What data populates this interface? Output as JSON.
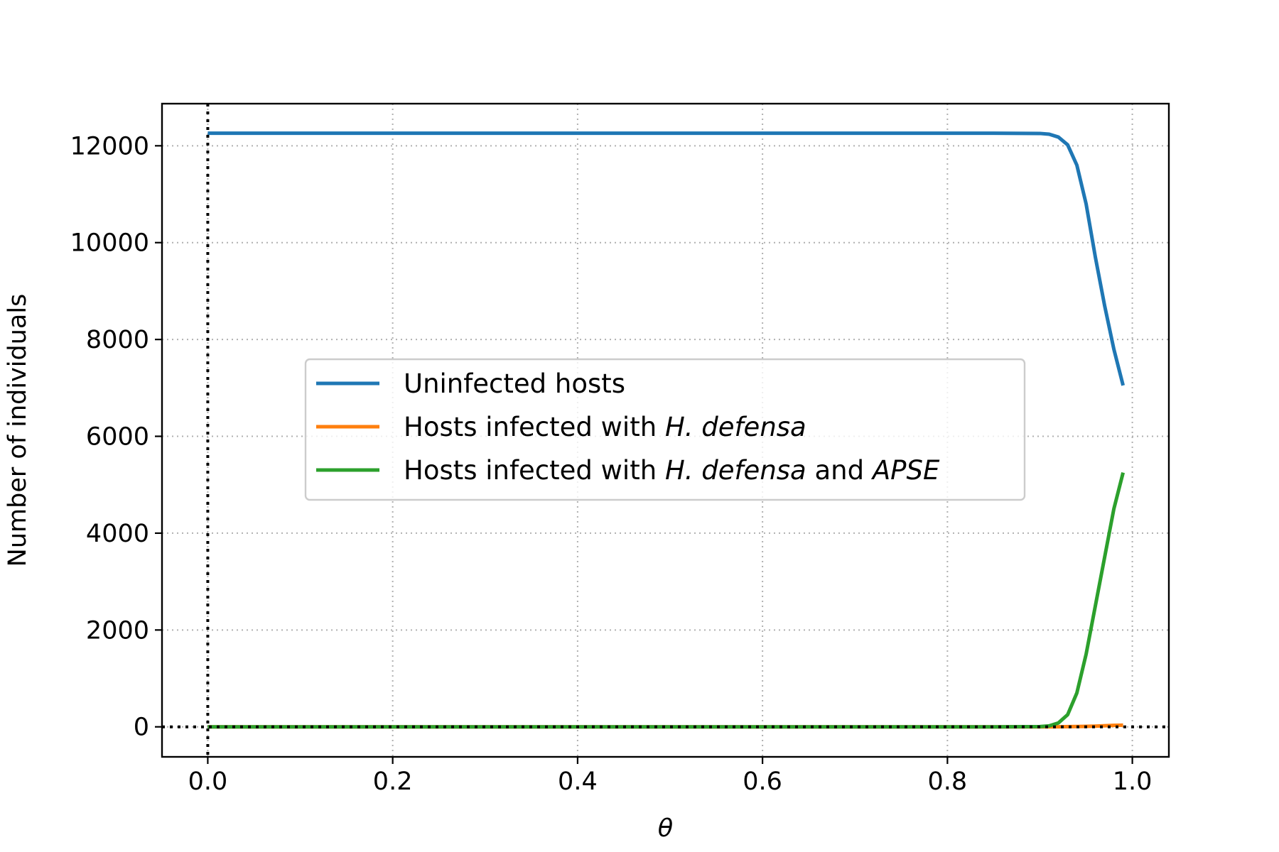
{
  "chart_data": {
    "type": "line",
    "title": "",
    "xlabel": "θ",
    "ylabel": "Number of individuals",
    "xlim": [
      -0.0495,
      1.0395
    ],
    "ylim": [
      -620,
      12870
    ],
    "x_ticks": [
      0.0,
      0.2,
      0.4,
      0.6,
      0.8,
      1.0
    ],
    "x_tick_labels": [
      "0.0",
      "0.2",
      "0.4",
      "0.6",
      "0.8",
      "1.0"
    ],
    "y_ticks": [
      0,
      2000,
      4000,
      6000,
      8000,
      10000,
      12000
    ],
    "y_tick_labels": [
      "0",
      "2000",
      "4000",
      "6000",
      "8000",
      "10000",
      "12000"
    ],
    "grid": true,
    "legend_position": "center",
    "reference_lines": [
      {
        "orientation": "vertical",
        "value": 0,
        "style": "dotted",
        "color": "#000000"
      },
      {
        "orientation": "horizontal",
        "value": 0,
        "style": "dotted",
        "color": "#000000"
      }
    ],
    "series": [
      {
        "name": "Uninfected hosts",
        "color": "#1f77b4",
        "x": [
          0.0,
          0.1,
          0.2,
          0.3,
          0.4,
          0.5,
          0.6,
          0.7,
          0.8,
          0.85,
          0.9,
          0.91,
          0.92,
          0.93,
          0.94,
          0.95,
          0.96,
          0.97,
          0.98,
          0.99
        ],
        "y": [
          12260,
          12260,
          12260,
          12260,
          12260,
          12260,
          12260,
          12260,
          12260,
          12260,
          12255,
          12240,
          12180,
          12020,
          11600,
          10800,
          9700,
          8700,
          7800,
          7050
        ]
      },
      {
        "name": "Hosts infected with H. defensa",
        "color": "#ff7f0e",
        "x": [
          0.0,
          0.1,
          0.2,
          0.3,
          0.4,
          0.5,
          0.6,
          0.7,
          0.8,
          0.9,
          0.92,
          0.94,
          0.96,
          0.98,
          0.99
        ],
        "y": [
          0,
          0,
          0,
          0,
          0,
          0,
          0,
          0,
          0,
          0,
          2,
          6,
          15,
          30,
          35
        ]
      },
      {
        "name": "Hosts infected with H. defensa and APSE",
        "color": "#2ca02c",
        "x": [
          0.0,
          0.1,
          0.2,
          0.3,
          0.4,
          0.5,
          0.6,
          0.7,
          0.8,
          0.85,
          0.9,
          0.91,
          0.92,
          0.93,
          0.94,
          0.95,
          0.96,
          0.97,
          0.98,
          0.99
        ],
        "y": [
          0,
          0,
          0,
          0,
          0,
          0,
          0,
          0,
          0,
          0,
          5,
          20,
          80,
          250,
          700,
          1500,
          2500,
          3500,
          4500,
          5250
        ]
      }
    ]
  },
  "legend": {
    "items": [
      {
        "segments": [
          {
            "text": "Uninfected hosts",
            "italic": false
          }
        ]
      },
      {
        "segments": [
          {
            "text": "Hosts infected with ",
            "italic": false
          },
          {
            "text": "H. defensa",
            "italic": true
          }
        ]
      },
      {
        "segments": [
          {
            "text": "Hosts infected with ",
            "italic": false
          },
          {
            "text": "H. defensa",
            "italic": true
          },
          {
            "text": " and ",
            "italic": false
          },
          {
            "text": "APSE",
            "italic": true
          }
        ]
      }
    ]
  }
}
